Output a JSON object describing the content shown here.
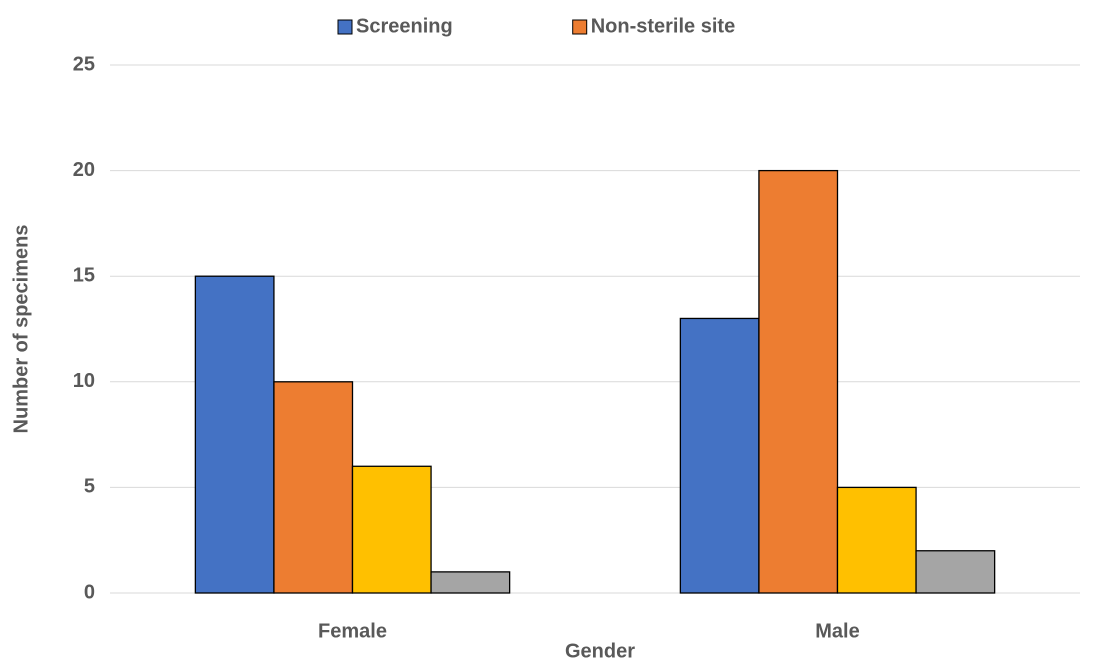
{
  "chart_data": {
    "type": "bar",
    "categories": [
      "Female",
      "Male"
    ],
    "series": [
      {
        "name": "Screening",
        "color": "#4472c4",
        "values": [
          15,
          13
        ]
      },
      {
        "name": "Non-sterile site",
        "color": "#ed7d31",
        "values": [
          10,
          20
        ]
      },
      {
        "color": "#ffc000",
        "values": [
          6,
          5
        ]
      },
      {
        "color": "#a5a5a5",
        "values": [
          1,
          2
        ]
      }
    ],
    "x_label": "Gender",
    "y_label": "Number of specimens",
    "ylim": [
      0,
      25
    ],
    "yticks": [
      0,
      5,
      10,
      15,
      20,
      25
    ],
    "grid": true,
    "legend": "top"
  }
}
